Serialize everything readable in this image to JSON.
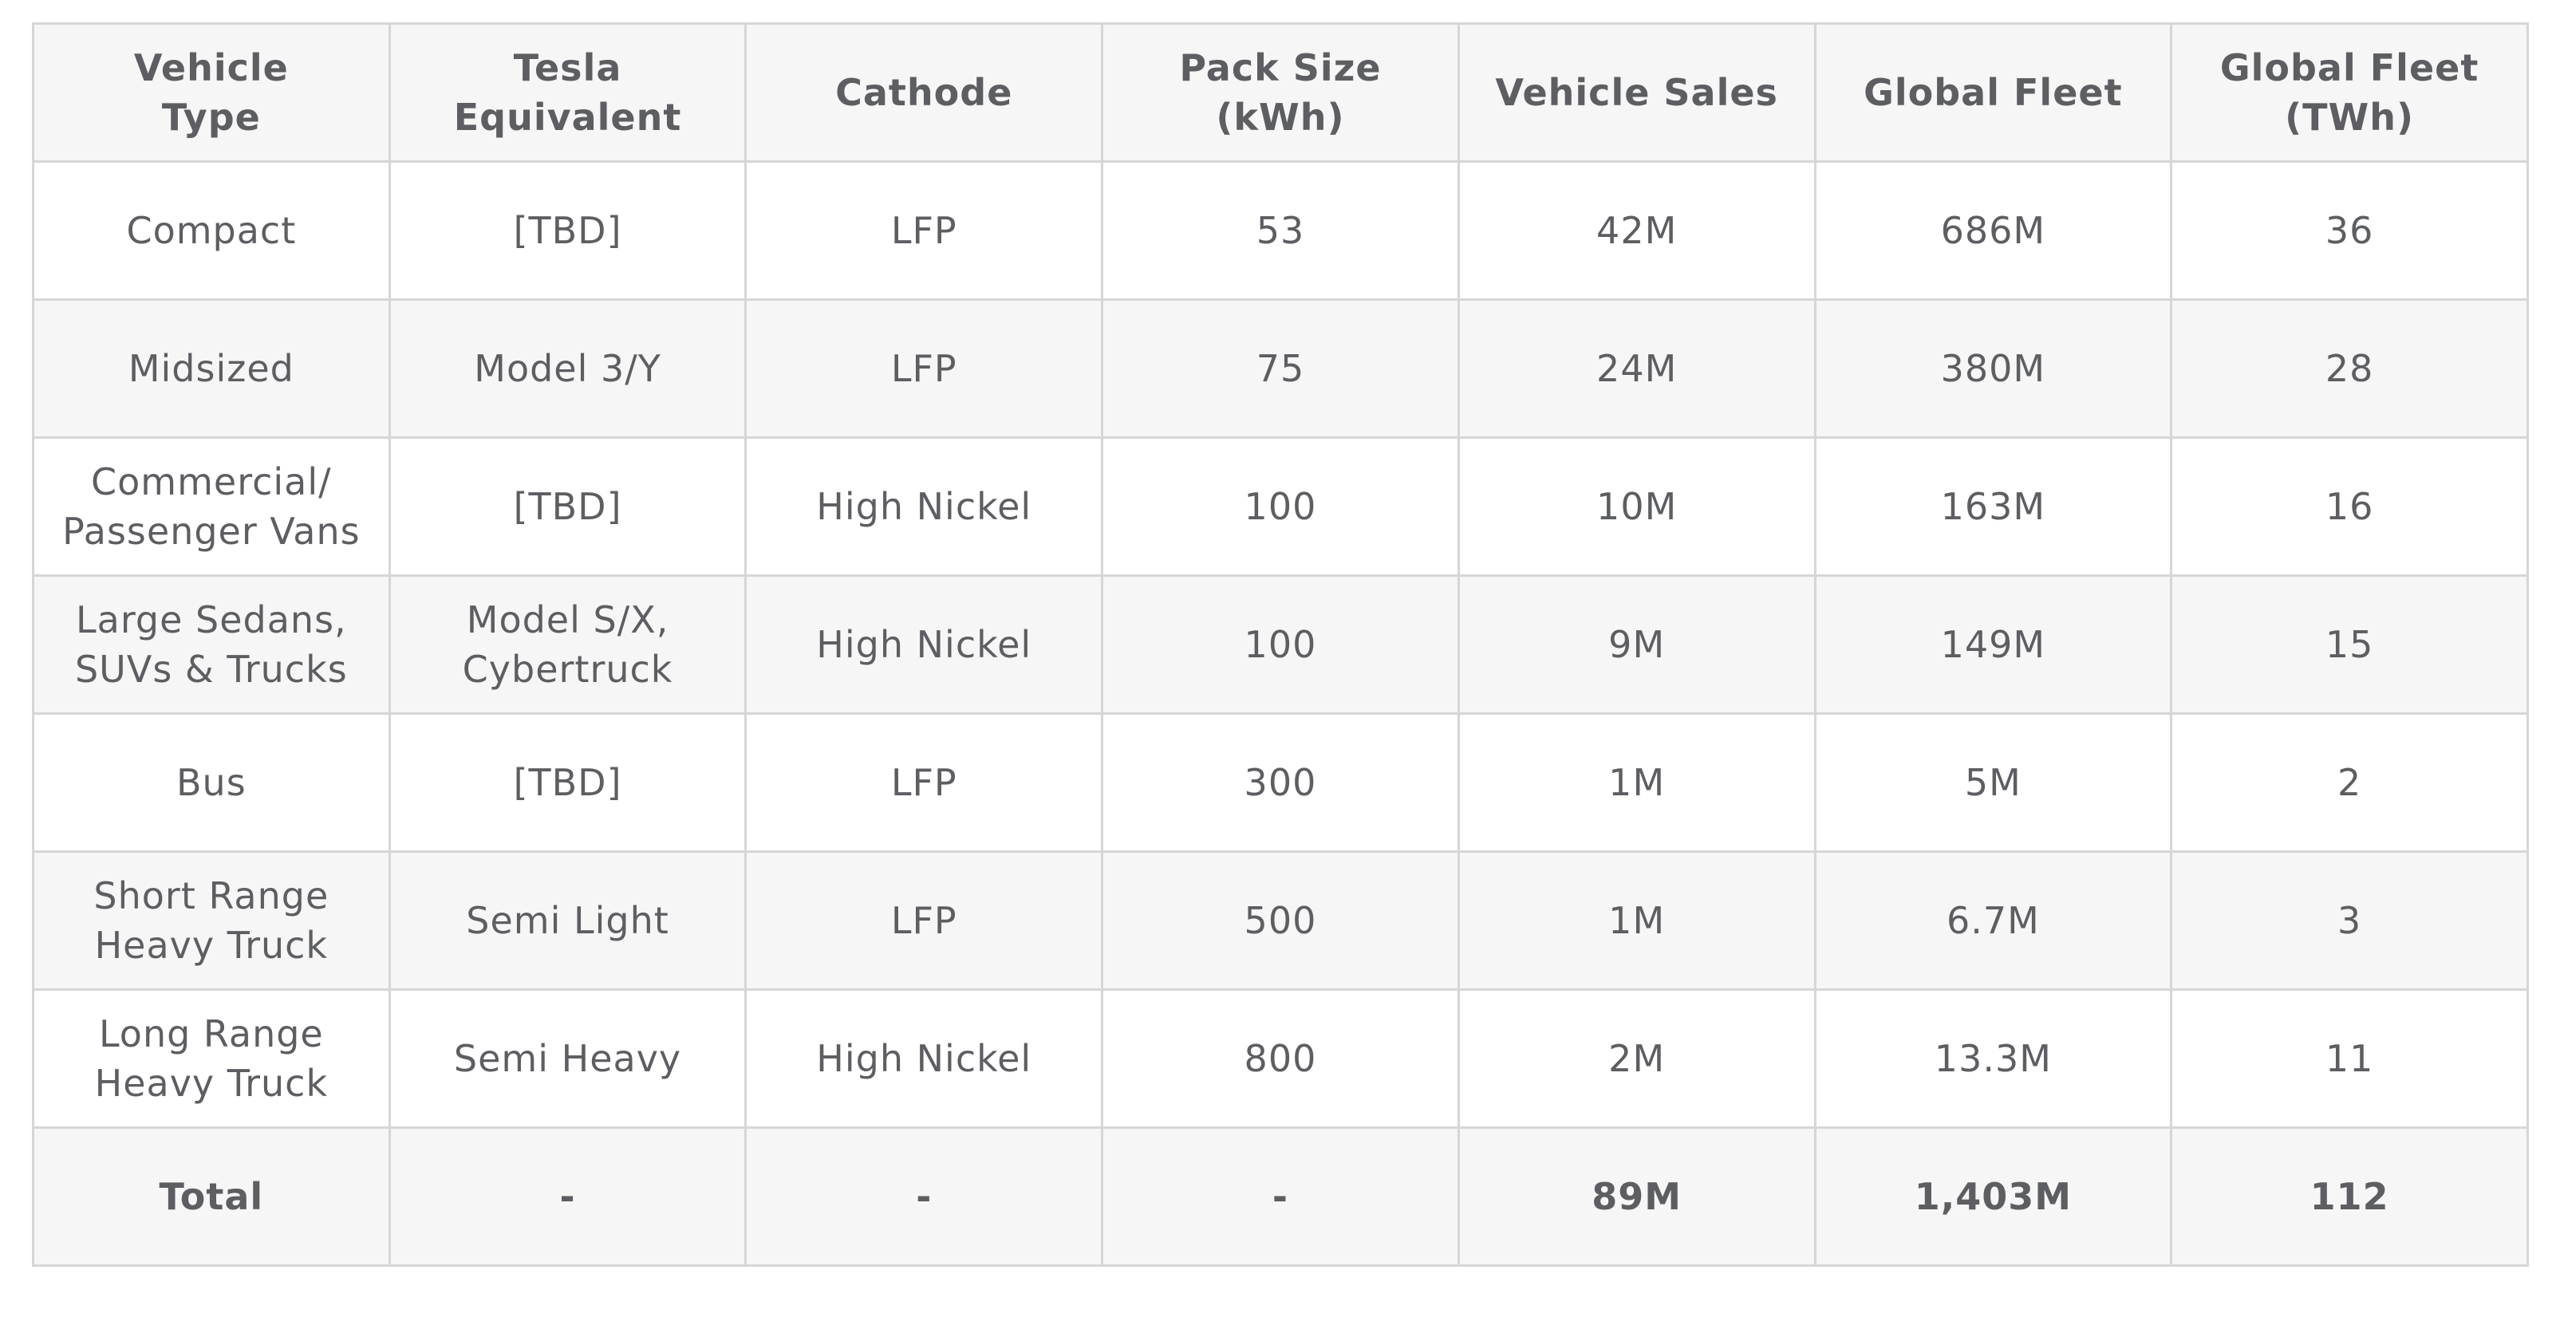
{
  "table": {
    "headers": [
      "Vehicle\nType",
      "Tesla\nEquivalent",
      "Cathode",
      "Pack Size\n(kWh)",
      "Vehicle Sales",
      "Global Fleet",
      "Global Fleet\n(TWh)"
    ],
    "rows": [
      [
        "Compact",
        "[TBD]",
        "LFP",
        "53",
        "42M",
        "686M",
        "36"
      ],
      [
        "Midsized",
        "Model 3/Y",
        "LFP",
        "75",
        "24M",
        "380M",
        "28"
      ],
      [
        "Commercial/\nPassenger Vans",
        "[TBD]",
        "High Nickel",
        "100",
        "10M",
        "163M",
        "16"
      ],
      [
        "Large Sedans,\nSUVs & Trucks",
        "Model S/X,\nCybertruck",
        "High Nickel",
        "100",
        "9M",
        "149M",
        "15"
      ],
      [
        "Bus",
        "[TBD]",
        "LFP",
        "300",
        "1M",
        "5M",
        "2"
      ],
      [
        "Short Range\nHeavy Truck",
        "Semi Light",
        "LFP",
        "500",
        "1M",
        "6.7M",
        "3"
      ],
      [
        "Long Range\nHeavy Truck",
        "Semi Heavy",
        "High Nickel",
        "800",
        "2M",
        "13.3M",
        "11"
      ]
    ],
    "total": [
      "Total",
      "-",
      "-",
      "-",
      "89M",
      "1,403M",
      "112"
    ]
  },
  "colors": {
    "text": "#5c5e62",
    "border": "#d6d6d6",
    "header_bg": "#f6f6f6",
    "stripe_bg": "#f6f6f6",
    "row_bg": "#ffffff"
  }
}
